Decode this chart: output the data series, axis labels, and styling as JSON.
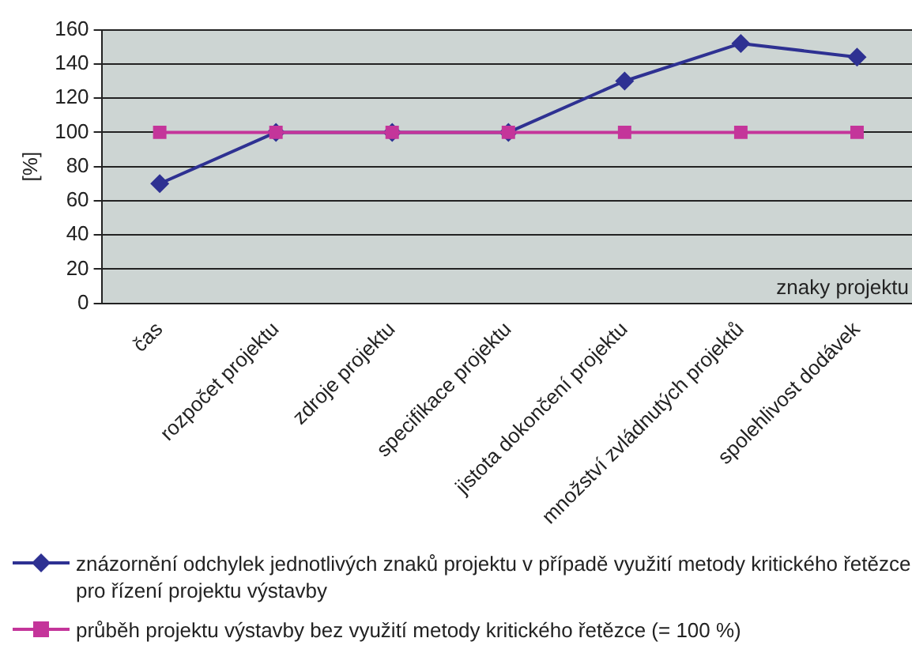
{
  "chart_data": {
    "type": "line",
    "xlabel": "znaky projektu",
    "ylabel": "[%]",
    "categories": [
      "čas",
      "rozpočet projektu",
      "zdroje projektu",
      "specifikace projektu",
      "jistota dokončení projektu",
      "množství zvládnutých projektů",
      "spolehlivost dodávek"
    ],
    "series": [
      {
        "name": "znázornění odchylek jednotlivých znaků projektu v případě využití metody kritického řetězce pro řízení projektu výstavby",
        "color": "#2e3192",
        "marker": "diamond",
        "values": [
          70,
          100,
          100,
          100,
          130,
          152,
          144
        ]
      },
      {
        "name": "průběh projektu výstavby bez využití metody kritického řetězce (= 100 %)",
        "color": "#c4359a",
        "marker": "square",
        "values": [
          100,
          100,
          100,
          100,
          100,
          100,
          100
        ]
      }
    ],
    "ylim": [
      0,
      160
    ],
    "yticks": [
      0,
      20,
      40,
      60,
      80,
      100,
      120,
      140,
      160
    ],
    "grid": "y",
    "legend": "bottom",
    "line_style": "solid"
  }
}
